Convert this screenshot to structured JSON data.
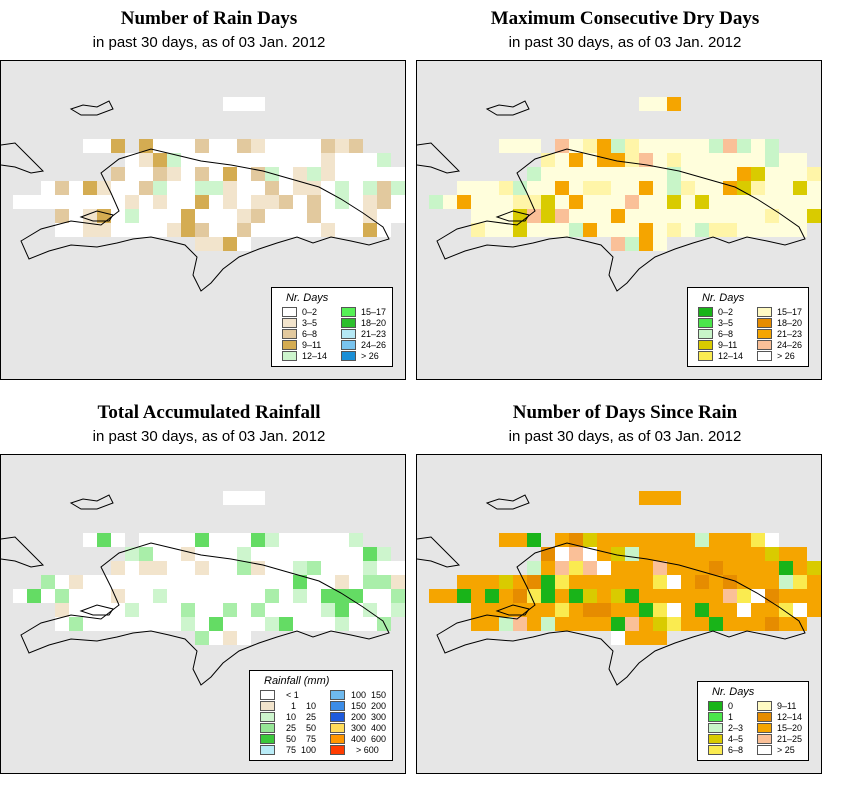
{
  "panels": [
    {
      "title": "Number of Rain Days",
      "subtitle": "in past 30 days, as of  03 Jan. 2012",
      "palette": [
        "#ffffff",
        "#f2e4cc",
        "#e2c99e",
        "#d4ac52",
        "#cdf5cd"
      ],
      "legend": {
        "title": "Nr. Days",
        "type": "simple",
        "items": [
          {
            "label": "0–2",
            "color": "#ffffff"
          },
          {
            "label": "3–5",
            "color": "#f2e4cc"
          },
          {
            "label": "6–8",
            "color": "#e2c99e"
          },
          {
            "label": "9–11",
            "color": "#d4ac52"
          },
          {
            "label": "12–14",
            "color": "#cdf5cd"
          },
          {
            "label": "15–17",
            "color": "#55f055"
          },
          {
            "label": "18–20",
            "color": "#2cbf2c"
          },
          {
            "label": "21–23",
            "color": "#b5e8f5"
          },
          {
            "label": "24–26",
            "color": "#79c4ef"
          },
          {
            "label": "> 26",
            "color": "#1a8fd6"
          }
        ]
      }
    },
    {
      "title": "Maximum Consecutive Dry Days",
      "subtitle": "in past 30 days, as of  03 Jan. 2012",
      "palette": [
        "#fffedc",
        "#fff5a8",
        "#d9cb00",
        "#f5a500",
        "#fac098",
        "#c8f5c8"
      ],
      "legend": {
        "title": "Nr. Days",
        "type": "simple",
        "items": [
          {
            "label": "0–2",
            "color": "#19b419"
          },
          {
            "label": "3–5",
            "color": "#4be64b"
          },
          {
            "label": "6–8",
            "color": "#c8f5c8"
          },
          {
            "label": "9–11",
            "color": "#d9cb00"
          },
          {
            "label": "12–14",
            "color": "#faeb50"
          },
          {
            "label": "15–17",
            "color": "#fffac3"
          },
          {
            "label": "18–20",
            "color": "#e68c00"
          },
          {
            "label": "21–23",
            "color": "#f5a500"
          },
          {
            "label": "24–26",
            "color": "#fac098"
          },
          {
            "label": "> 26",
            "color": "#ffffff"
          }
        ]
      }
    },
    {
      "title": "Total Accumulated Rainfall",
      "subtitle": "in past 30 days, as of  03 Jan. 2012",
      "palette": [
        "#ffffff",
        "#f2e4cc",
        "#cdf5cd",
        "#a9eea9",
        "#64dc64"
      ],
      "legend": {
        "title": "Rainfall (mm)",
        "type": "range",
        "items": [
          {
            "a": "< 1",
            "b": "",
            "color": "#ffffff"
          },
          {
            "a": "1",
            "b": "10",
            "color": "#f2e4cc"
          },
          {
            "a": "10",
            "b": "25",
            "color": "#cdf5cd"
          },
          {
            "a": "25",
            "b": "50",
            "color": "#96e696"
          },
          {
            "a": "50",
            "b": "75",
            "color": "#3cc83c"
          },
          {
            "a": "75",
            "b": "100",
            "color": "#b9ecf7"
          },
          {
            "a": "100",
            "b": "150",
            "color": "#6eb9ee"
          },
          {
            "a": "150",
            "b": "200",
            "color": "#3c8ce6"
          },
          {
            "a": "200",
            "b": "300",
            "color": "#1e5adc"
          },
          {
            "a": "300",
            "b": "400",
            "color": "#ffdc5a"
          },
          {
            "a": "400",
            "b": "600",
            "color": "#ff9600"
          },
          {
            "a": "> 600",
            "b": "",
            "color": "#ff3c00"
          }
        ]
      }
    },
    {
      "title": "Number of Days Since Rain",
      "subtitle": "in past 30 days, as of  03 Jan. 2012",
      "palette": [
        "#f5a500",
        "#e68c00",
        "#d9cb00",
        "#19b419",
        "#fac098",
        "#ffffff",
        "#c8f5c8",
        "#faeb50"
      ],
      "legend": {
        "title": "Nr. Days",
        "type": "simple",
        "items": [
          {
            "label": "0",
            "color": "#19b419"
          },
          {
            "label": "1",
            "color": "#4be64b"
          },
          {
            "label": "2–3",
            "color": "#c8f5c8"
          },
          {
            "label": "4–5",
            "color": "#d9cb00"
          },
          {
            "label": "6–8",
            "color": "#faeb50"
          },
          {
            "label": "9–11",
            "color": "#fffac3"
          },
          {
            "label": "12–14",
            "color": "#e68c00"
          },
          {
            "label": "15–20",
            "color": "#f5a500"
          },
          {
            "label": "21–25",
            "color": "#fac098"
          },
          {
            "label": "> 25",
            "color": "#ffffff"
          }
        ]
      }
    }
  ]
}
